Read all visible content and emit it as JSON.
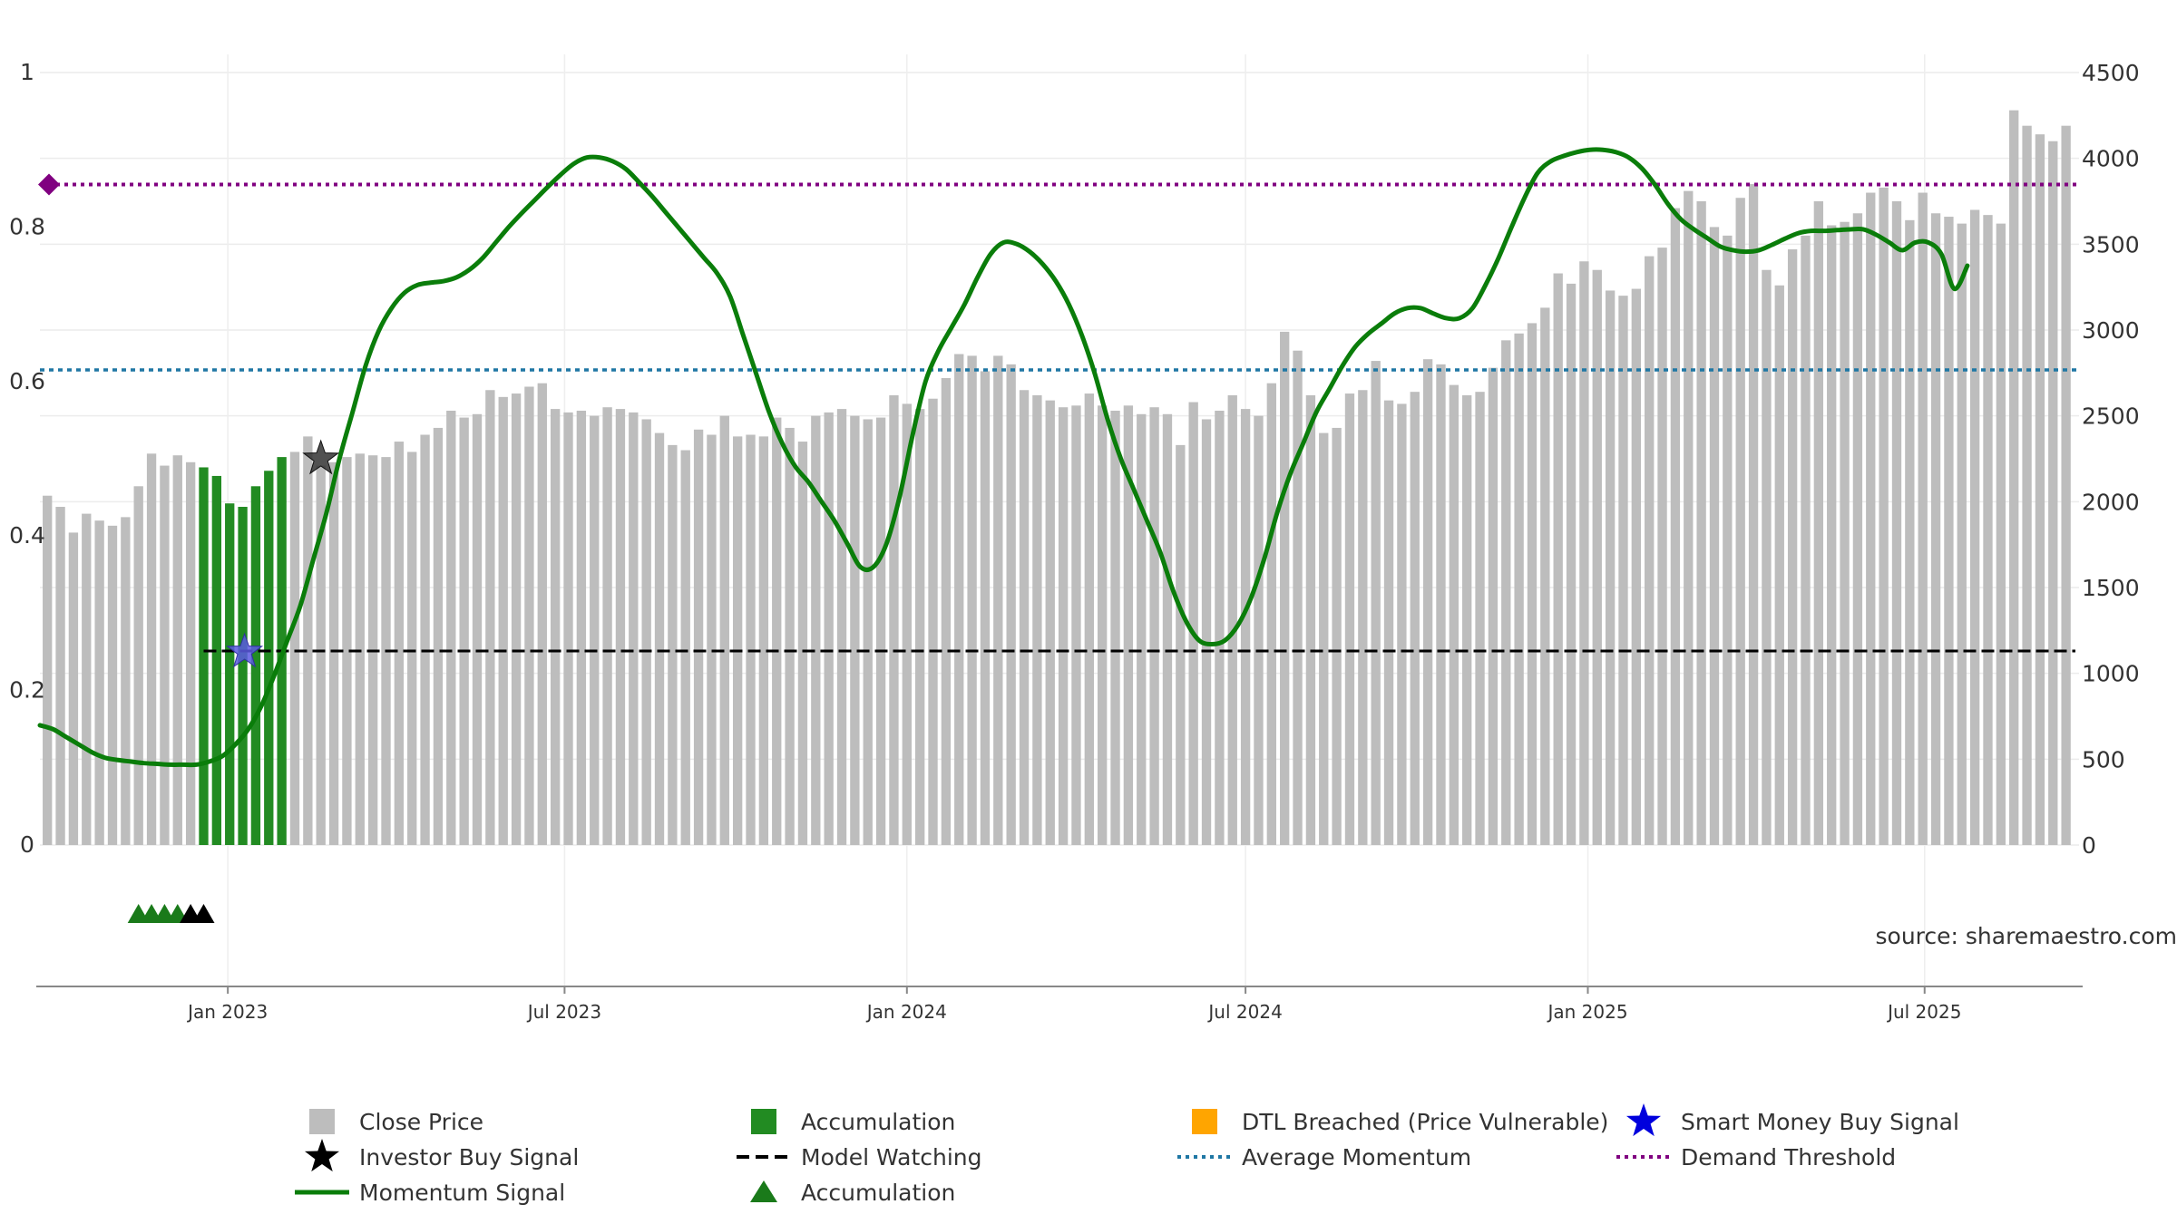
{
  "chart_data": {
    "type": "bar",
    "source_note": "source: sharemaestro.com",
    "left_axis": {
      "min": 0,
      "max": 1,
      "ticks": [
        "0",
        "0.2",
        "0.4",
        "0.6",
        "0.8",
        "1"
      ]
    },
    "right_axis": {
      "min": 0,
      "max": 4500,
      "ticks": [
        "0",
        "500",
        "1000",
        "1500",
        "2000",
        "2500",
        "3000",
        "3500",
        "4000",
        "4500"
      ]
    },
    "x_axis": {
      "start": "2022-09-22",
      "end": "2025-09-22",
      "ticks": [
        {
          "date": "2023-01-01",
          "label": "Jan 2023"
        },
        {
          "date": "2023-07-01",
          "label": "Jul 2023"
        },
        {
          "date": "2024-01-01",
          "label": "Jan 2024"
        },
        {
          "date": "2024-07-01",
          "label": "Jul 2024"
        },
        {
          "date": "2025-01-01",
          "label": "Jan 2025"
        },
        {
          "date": "2025-07-01",
          "label": "Jul 2025"
        }
      ]
    },
    "close_price": {
      "start_date": "2022-09-26",
      "interval_days": 7,
      "values": [
        2035,
        1970,
        1820,
        1930,
        1890,
        1860,
        1910,
        2090,
        2280,
        2210,
        2270,
        2230,
        2200,
        2150,
        1990,
        1970,
        2090,
        2180,
        2260,
        2290,
        2380,
        2210,
        2230,
        2260,
        2280,
        2270,
        2260,
        2350,
        2290,
        2390,
        2430,
        2530,
        2490,
        2510,
        2650,
        2610,
        2630,
        2670,
        2690,
        2540,
        2520,
        2530,
        2500,
        2550,
        2540,
        2520,
        2480,
        2400,
        2330,
        2300,
        2420,
        2390,
        2500,
        2380,
        2390,
        2380,
        2490,
        2430,
        2350,
        2500,
        2520,
        2540,
        2500,
        2480,
        2490,
        2620,
        2570,
        2540,
        2600,
        2720,
        2860,
        2850,
        2760,
        2850,
        2800,
        2650,
        2620,
        2590,
        2550,
        2560,
        2630,
        2560,
        2530,
        2560,
        2510,
        2550,
        2510,
        2330,
        2580,
        2480,
        2530,
        2620,
        2540,
        2500,
        2690,
        2990,
        2880,
        2620,
        2400,
        2430,
        2630,
        2650,
        2820,
        2590,
        2570,
        2640,
        2830,
        2800,
        2680,
        2620,
        2640,
        2780,
        2940,
        2980,
        3040,
        3130,
        3330,
        3270,
        3400,
        3350,
        3230,
        3200,
        3240,
        3430,
        3480,
        3710,
        3810,
        3750,
        3600,
        3550,
        3770,
        3850,
        3350,
        3260,
        3470,
        3550,
        3750,
        3610,
        3630,
        3680,
        3800,
        3830,
        3750,
        3640,
        3800,
        3680,
        3660,
        3620,
        3700,
        3670,
        3620,
        4280,
        4190,
        4140,
        4100,
        4190
      ],
      "accumulation_range": [
        12,
        18
      ],
      "dtl_breached_range": [
        165,
        170
      ]
    },
    "momentum_signal": {
      "start_date": "2022-09-22",
      "interval_days": 7,
      "values": [
        0.155,
        0.15,
        0.14,
        0.13,
        0.12,
        0.113,
        0.11,
        0.108,
        0.106,
        0.105,
        0.104,
        0.104,
        0.104,
        0.108,
        0.115,
        0.13,
        0.15,
        0.18,
        0.22,
        0.265,
        0.31,
        0.37,
        0.43,
        0.5,
        0.56,
        0.62,
        0.665,
        0.695,
        0.715,
        0.725,
        0.728,
        0.73,
        0.735,
        0.745,
        0.76,
        0.78,
        0.8,
        0.818,
        0.835,
        0.852,
        0.868,
        0.882,
        0.89,
        0.89,
        0.885,
        0.875,
        0.858,
        0.84,
        0.82,
        0.8,
        0.78,
        0.76,
        0.74,
        0.71,
        0.66,
        0.61,
        0.56,
        0.52,
        0.49,
        0.47,
        0.445,
        0.42,
        0.39,
        0.36,
        0.36,
        0.39,
        0.45,
        0.53,
        0.6,
        0.64,
        0.67,
        0.7,
        0.735,
        0.765,
        0.78,
        0.778,
        0.768,
        0.752,
        0.73,
        0.7,
        0.66,
        0.61,
        0.55,
        0.5,
        0.46,
        0.42,
        0.38,
        0.33,
        0.29,
        0.265,
        0.26,
        0.265,
        0.285,
        0.32,
        0.37,
        0.43,
        0.48,
        0.52,
        0.56,
        0.59,
        0.62,
        0.645,
        0.662,
        0.675,
        0.688,
        0.695,
        0.695,
        0.688,
        0.682,
        0.682,
        0.695,
        0.725,
        0.76,
        0.8,
        0.838,
        0.87,
        0.885,
        0.892,
        0.897,
        0.9,
        0.9,
        0.897,
        0.89,
        0.876,
        0.855,
        0.83,
        0.81,
        0.797,
        0.786,
        0.775,
        0.77,
        0.768,
        0.77,
        0.777,
        0.785,
        0.792,
        0.795,
        0.795,
        0.796,
        0.797,
        0.797,
        0.79,
        0.78,
        0.77,
        0.78,
        0.78,
        0.765,
        0.72,
        0.75
      ]
    },
    "average_momentum": 0.615,
    "demand_threshold": 0.855,
    "model_watching_price": 1130,
    "investor_buy_signals": [
      {
        "date": "2023-02-20",
        "value": 0.5
      }
    ],
    "smart_money_buy_signals": [
      {
        "date": "2023-01-10",
        "value": 0.25
      }
    ],
    "accumulation_markers": [
      {
        "date": "2022-11-14",
        "color": "#1a7a1a"
      },
      {
        "date": "2022-11-21",
        "color": "#1a7a1a"
      },
      {
        "date": "2022-11-28",
        "color": "#1a7a1a"
      },
      {
        "date": "2022-12-05",
        "color": "#1a7a1a"
      },
      {
        "date": "2022-12-12",
        "color": "#000000"
      },
      {
        "date": "2022-12-19",
        "color": "#000000"
      }
    ],
    "legend": {
      "items": [
        {
          "key": "close_price",
          "label": "Close Price",
          "symbol": "square",
          "color": "#bdbdbd"
        },
        {
          "key": "accumulation_bar",
          "label": "Accumulation",
          "symbol": "square",
          "color": "#228b22"
        },
        {
          "key": "dtl_breached",
          "label": "DTL Breached (Price Vulnerable)",
          "symbol": "square",
          "color": "#ffa500"
        },
        {
          "key": "smart_money",
          "label": "Smart Money Buy Signal",
          "symbol": "star",
          "color": "#0000dd"
        },
        {
          "key": "investor_buy",
          "label": "Investor Buy Signal",
          "symbol": "star",
          "color": "#000000"
        },
        {
          "key": "model_watching",
          "label": "Model Watching",
          "symbol": "dash",
          "color": "#000000"
        },
        {
          "key": "average_momentum",
          "label": "Average Momentum",
          "symbol": "dot",
          "color": "#1f77a4"
        },
        {
          "key": "demand_threshold",
          "label": "Demand Threshold",
          "symbol": "dot",
          "color": "#800080"
        },
        {
          "key": "momentum_signal",
          "label": "Momentum Signal",
          "symbol": "line",
          "color": "#0a7d0a"
        },
        {
          "key": "accumulation_marker",
          "label": "Accumulation",
          "symbol": "triangle",
          "color": "#1a7a1a"
        }
      ]
    },
    "colors": {
      "close_price": "#bdbdbd",
      "accumulation": "#228b22",
      "dtl_breached": "#ffd27f",
      "momentum": "#0a7d0a",
      "average_momentum": "#1f77a4",
      "demand_threshold": "#800080",
      "model_watching": "#000000",
      "smart_money": "#5a5ae0",
      "investor_buy": "#333333"
    }
  }
}
